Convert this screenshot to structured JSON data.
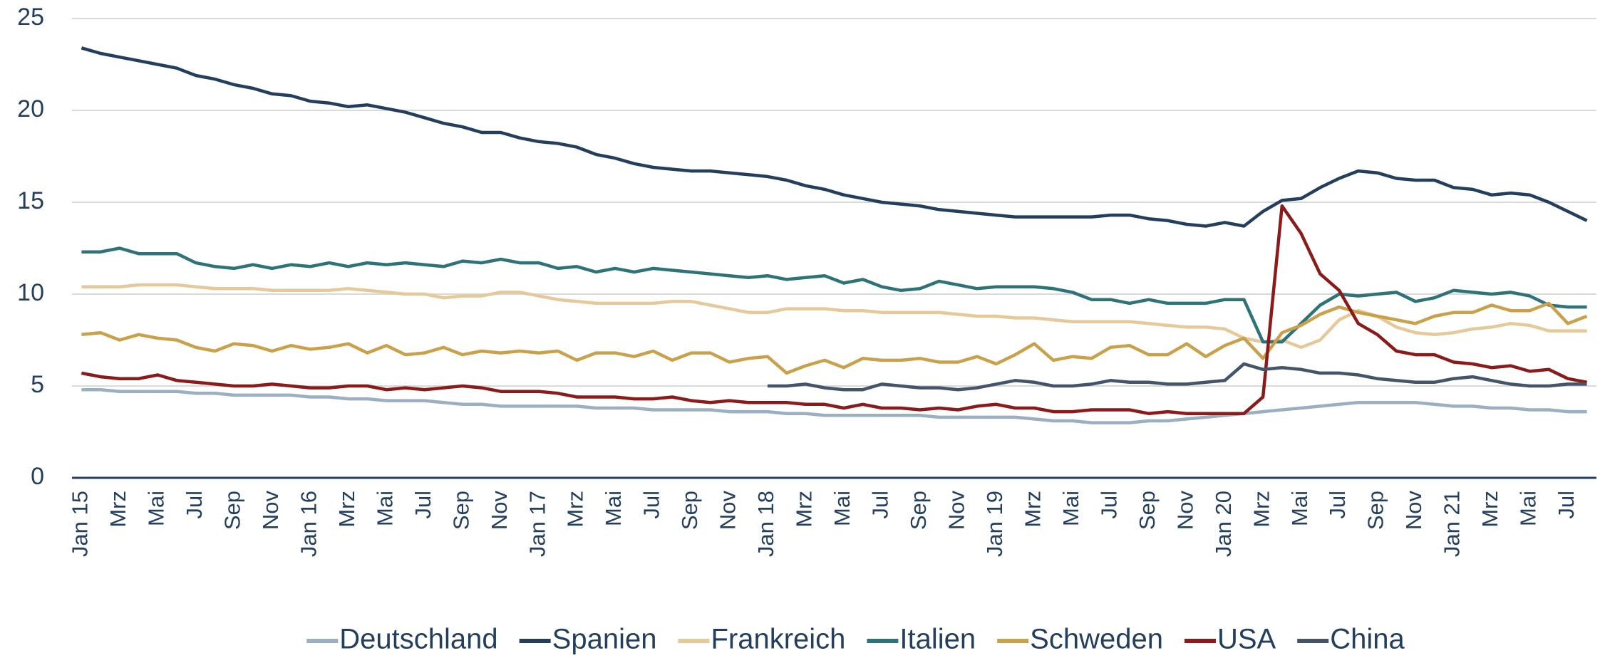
{
  "chart_data": {
    "type": "line",
    "categories": [
      "Jan 15",
      null,
      "Mrz",
      null,
      "Mai",
      null,
      "Jul",
      null,
      "Sep",
      null,
      "Nov",
      null,
      "Jan 16",
      null,
      "Mrz",
      null,
      "Mai",
      null,
      "Jul",
      null,
      "Sep",
      null,
      "Nov",
      null,
      "Jan 17",
      null,
      "Mrz",
      null,
      "Mai",
      null,
      "Jul",
      null,
      "Sep",
      null,
      "Nov",
      null,
      "Jan 18",
      null,
      "Mrz",
      null,
      "Mai",
      null,
      "Jul",
      null,
      "Sep",
      null,
      "Nov",
      null,
      "Jan 19",
      null,
      "Mrz",
      null,
      "Mai",
      null,
      "Jul",
      null,
      "Sep",
      null,
      "Nov",
      null,
      "Jan 20",
      null,
      "Mrz",
      null,
      "Mai",
      null,
      "Jul",
      null,
      "Sep",
      null,
      "Nov",
      null,
      "Jan 21",
      null,
      "Mrz",
      null,
      "Mai",
      null,
      "Jul",
      null
    ],
    "series": [
      {
        "name": "Deutschland",
        "color": "#9aafc1",
        "values": [
          4.8,
          4.8,
          4.7,
          4.7,
          4.7,
          4.7,
          4.6,
          4.6,
          4.5,
          4.5,
          4.5,
          4.5,
          4.4,
          4.4,
          4.3,
          4.3,
          4.2,
          4.2,
          4.2,
          4.1,
          4.0,
          4.0,
          3.9,
          3.9,
          3.9,
          3.9,
          3.9,
          3.8,
          3.8,
          3.8,
          3.7,
          3.7,
          3.7,
          3.7,
          3.6,
          3.6,
          3.6,
          3.5,
          3.5,
          3.4,
          3.4,
          3.4,
          3.4,
          3.4,
          3.4,
          3.3,
          3.3,
          3.3,
          3.3,
          3.3,
          3.2,
          3.1,
          3.1,
          3.0,
          3.0,
          3.0,
          3.1,
          3.1,
          3.2,
          3.3,
          3.4,
          3.5,
          3.6,
          3.7,
          3.8,
          3.9,
          4.0,
          4.1,
          4.1,
          4.1,
          4.1,
          4.0,
          3.9,
          3.9,
          3.8,
          3.8,
          3.7,
          3.7,
          3.6,
          3.6
        ]
      },
      {
        "name": "Spanien",
        "color": "#243f5e",
        "values": [
          23.4,
          23.1,
          22.9,
          22.7,
          22.5,
          22.3,
          21.9,
          21.7,
          21.4,
          21.2,
          20.9,
          20.8,
          20.5,
          20.4,
          20.2,
          20.3,
          20.1,
          19.9,
          19.6,
          19.3,
          19.1,
          18.8,
          18.8,
          18.5,
          18.3,
          18.2,
          18.0,
          17.6,
          17.4,
          17.1,
          16.9,
          16.8,
          16.7,
          16.7,
          16.6,
          16.5,
          16.4,
          16.2,
          15.9,
          15.7,
          15.4,
          15.2,
          15.0,
          14.9,
          14.8,
          14.6,
          14.5,
          14.4,
          14.3,
          14.2,
          14.2,
          14.2,
          14.2,
          14.2,
          14.3,
          14.3,
          14.1,
          14.0,
          13.8,
          13.7,
          13.9,
          13.7,
          14.5,
          15.1,
          15.2,
          15.8,
          16.3,
          16.7,
          16.6,
          16.3,
          16.2,
          16.2,
          15.8,
          15.7,
          15.4,
          15.5,
          15.4,
          15.0,
          14.5,
          14.0
        ]
      },
      {
        "name": "Frankreich",
        "color": "#e6c99a",
        "values": [
          10.4,
          10.4,
          10.4,
          10.5,
          10.5,
          10.5,
          10.4,
          10.3,
          10.3,
          10.3,
          10.2,
          10.2,
          10.2,
          10.2,
          10.3,
          10.2,
          10.1,
          10.0,
          10.0,
          9.8,
          9.9,
          9.9,
          10.1,
          10.1,
          9.9,
          9.7,
          9.6,
          9.5,
          9.5,
          9.5,
          9.5,
          9.6,
          9.6,
          9.4,
          9.2,
          9.0,
          9.0,
          9.2,
          9.2,
          9.2,
          9.1,
          9.1,
          9.0,
          9.0,
          9.0,
          9.0,
          8.9,
          8.8,
          8.8,
          8.7,
          8.7,
          8.6,
          8.5,
          8.5,
          8.5,
          8.5,
          8.4,
          8.3,
          8.2,
          8.2,
          8.1,
          7.6,
          7.4,
          7.5,
          7.1,
          7.5,
          8.6,
          9.1,
          8.8,
          8.2,
          7.9,
          7.8,
          7.9,
          8.1,
          8.2,
          8.4,
          8.3,
          8.0,
          8.0,
          8.0
        ]
      },
      {
        "name": "Italien",
        "color": "#2e7379",
        "values": [
          12.3,
          12.3,
          12.5,
          12.2,
          12.2,
          12.2,
          11.7,
          11.5,
          11.4,
          11.6,
          11.4,
          11.6,
          11.5,
          11.7,
          11.5,
          11.7,
          11.6,
          11.7,
          11.6,
          11.5,
          11.8,
          11.7,
          11.9,
          11.7,
          11.7,
          11.4,
          11.5,
          11.2,
          11.4,
          11.2,
          11.4,
          11.3,
          11.2,
          11.1,
          11.0,
          10.9,
          11.0,
          10.8,
          10.9,
          11.0,
          10.6,
          10.8,
          10.4,
          10.2,
          10.3,
          10.7,
          10.5,
          10.3,
          10.4,
          10.4,
          10.4,
          10.3,
          10.1,
          9.7,
          9.7,
          9.5,
          9.7,
          9.5,
          9.5,
          9.5,
          9.7,
          9.7,
          7.4,
          7.4,
          8.4,
          9.4,
          10.0,
          9.9,
          10.0,
          10.1,
          9.6,
          9.8,
          10.2,
          10.1,
          10.0,
          10.1,
          9.9,
          9.4,
          9.3,
          9.3
        ]
      },
      {
        "name": "Schweden",
        "color": "#c9a14a",
        "values": [
          7.8,
          7.9,
          7.5,
          7.8,
          7.6,
          7.5,
          7.1,
          6.9,
          7.3,
          7.2,
          6.9,
          7.2,
          7.0,
          7.1,
          7.3,
          6.8,
          7.2,
          6.7,
          6.8,
          7.1,
          6.7,
          6.9,
          6.8,
          6.9,
          6.8,
          6.9,
          6.4,
          6.8,
          6.8,
          6.6,
          6.9,
          6.4,
          6.8,
          6.8,
          6.3,
          6.5,
          6.6,
          5.7,
          6.1,
          6.4,
          6.0,
          6.5,
          6.4,
          6.4,
          6.5,
          6.3,
          6.3,
          6.6,
          6.2,
          6.7,
          7.3,
          6.4,
          6.6,
          6.5,
          7.1,
          7.2,
          6.7,
          6.7,
          7.3,
          6.6,
          7.2,
          7.6,
          6.5,
          7.9,
          8.3,
          8.9,
          9.3,
          9.0,
          8.8,
          8.6,
          8.4,
          8.8,
          9.0,
          9.0,
          9.4,
          9.1,
          9.1,
          9.5,
          8.4,
          8.8
        ]
      },
      {
        "name": "USA",
        "color": "#8b1a1a",
        "values": [
          5.7,
          5.5,
          5.4,
          5.4,
          5.6,
          5.3,
          5.2,
          5.1,
          5.0,
          5.0,
          5.1,
          5.0,
          4.9,
          4.9,
          5.0,
          5.0,
          4.8,
          4.9,
          4.8,
          4.9,
          5.0,
          4.9,
          4.7,
          4.7,
          4.7,
          4.6,
          4.4,
          4.4,
          4.4,
          4.3,
          4.3,
          4.4,
          4.2,
          4.1,
          4.2,
          4.1,
          4.1,
          4.1,
          4.0,
          4.0,
          3.8,
          4.0,
          3.8,
          3.8,
          3.7,
          3.8,
          3.7,
          3.9,
          4.0,
          3.8,
          3.8,
          3.6,
          3.6,
          3.7,
          3.7,
          3.7,
          3.5,
          3.6,
          3.5,
          3.5,
          3.5,
          3.5,
          4.4,
          14.8,
          13.3,
          11.1,
          10.2,
          8.4,
          7.8,
          6.9,
          6.7,
          6.7,
          6.3,
          6.2,
          6.0,
          6.1,
          5.8,
          5.9,
          5.4,
          5.2
        ]
      },
      {
        "name": "China",
        "color": "#44546a",
        "values": [
          null,
          null,
          null,
          null,
          null,
          null,
          null,
          null,
          null,
          null,
          null,
          null,
          null,
          null,
          null,
          null,
          null,
          null,
          null,
          null,
          null,
          null,
          null,
          null,
          null,
          null,
          null,
          null,
          null,
          null,
          null,
          null,
          null,
          null,
          null,
          null,
          5.0,
          5.0,
          5.1,
          4.9,
          4.8,
          4.8,
          5.1,
          5.0,
          4.9,
          4.9,
          4.8,
          4.9,
          5.1,
          5.3,
          5.2,
          5.0,
          5.0,
          5.1,
          5.3,
          5.2,
          5.2,
          5.1,
          5.1,
          5.2,
          5.3,
          6.2,
          5.9,
          6.0,
          5.9,
          5.7,
          5.7,
          5.6,
          5.4,
          5.3,
          5.2,
          5.2,
          5.4,
          5.5,
          5.3,
          5.1,
          5.0,
          5.0,
          5.1,
          5.1
        ]
      }
    ],
    "ylim": [
      0,
      25
    ],
    "yticks": [
      0,
      5,
      10,
      15,
      20,
      25
    ],
    "grid": true,
    "legend": "bottom"
  }
}
